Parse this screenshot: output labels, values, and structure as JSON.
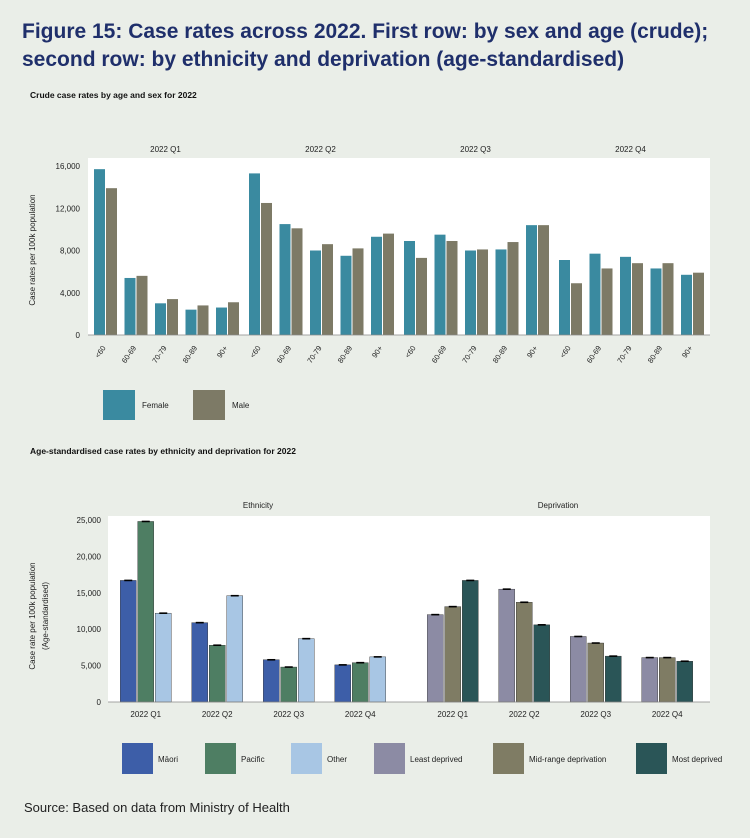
{
  "title": "Figure 15: Case rates across 2022. First row: by sex and age (crude); second row: by ethnicity and deprivation (age-standardised)",
  "source": "Source: Based on data from Ministry of Health",
  "colors": {
    "female": "#3a8aa0",
    "male": "#7d7a66",
    "maori": "#3d5ea8",
    "pacific": "#4e7e63",
    "other": "#a8c6e4",
    "least": "#8c8ba4",
    "mid": "#7f7c64",
    "most": "#2a5557"
  },
  "chart_data": [
    {
      "type": "bar",
      "subtitle": "Crude case rates by age and sex for 2022",
      "ylabel": "Case rates per 100k population",
      "ylim": [
        0,
        16000
      ],
      "yticks": [
        "0",
        "4,000",
        "8,000",
        "12,000",
        "16,000"
      ],
      "yticks_values": [
        0,
        4000,
        8000,
        12000,
        16000
      ],
      "groups": [
        "2022 Q1",
        "2022 Q2",
        "2022 Q3",
        "2022 Q4"
      ],
      "categories": [
        "<60",
        "60-69",
        "70-79",
        "80-89",
        "90+"
      ],
      "series": [
        {
          "name": "Female",
          "color_key": "female",
          "values": [
            [
              15700,
              5400,
              3000,
              2400,
              2600
            ],
            [
              15300,
              10500,
              8000,
              7500,
              9300
            ],
            [
              8900,
              9500,
              8000,
              8100,
              10400
            ],
            [
              7100,
              7700,
              7400,
              6300,
              5700
            ]
          ]
        },
        {
          "name": "Male",
          "color_key": "male",
          "values": [
            [
              13900,
              5600,
              3400,
              2800,
              3100
            ],
            [
              12500,
              10100,
              8600,
              8200,
              9600
            ],
            [
              7300,
              8900,
              8100,
              8800,
              10400
            ],
            [
              4900,
              6300,
              6800,
              6800,
              5900
            ]
          ]
        }
      ],
      "legend": [
        "Female",
        "Male"
      ]
    },
    {
      "type": "bar",
      "subtitle": "Age-standardised case rates by ethnicity and deprivation for 2022",
      "ylabel": "Case rate per 100k population",
      "ylabel2": "(Age-standardised)",
      "ylim": [
        0,
        25000
      ],
      "yticks": [
        "0",
        "5,000",
        "10,000",
        "15,000",
        "20,000",
        "25,000"
      ],
      "yticks_values": [
        0,
        5000,
        10000,
        15000,
        20000,
        25000
      ],
      "panels": [
        {
          "title": "Ethnicity",
          "categories": [
            "2022 Q1",
            "2022 Q2",
            "2022 Q3",
            "2022 Q4"
          ],
          "series": [
            {
              "name": "Māori",
              "color_key": "maori",
              "values": [
                16700,
                10900,
                5800,
                5100
              ]
            },
            {
              "name": "Pacific",
              "color_key": "pacific",
              "values": [
                24800,
                7800,
                4800,
                5400
              ]
            },
            {
              "name": "Other",
              "color_key": "other",
              "values": [
                12200,
                14600,
                8700,
                6200
              ]
            }
          ]
        },
        {
          "title": "Deprivation",
          "categories": [
            "2022 Q1",
            "2022 Q2",
            "2022 Q3",
            "2022 Q4"
          ],
          "series": [
            {
              "name": "Least deprived",
              "color_key": "least",
              "values": [
                12000,
                15500,
                9000,
                6100
              ]
            },
            {
              "name": "Mid-range deprivation",
              "color_key": "mid",
              "values": [
                13100,
                13700,
                8100,
                6100
              ]
            },
            {
              "name": "Most deprived",
              "color_key": "most",
              "values": [
                16700,
                10600,
                6300,
                5600
              ]
            }
          ]
        }
      ],
      "legend": [
        "Māori",
        "Pacific",
        "Other",
        "Least deprived",
        "Mid-range deprivation",
        "Most deprived"
      ]
    }
  ]
}
